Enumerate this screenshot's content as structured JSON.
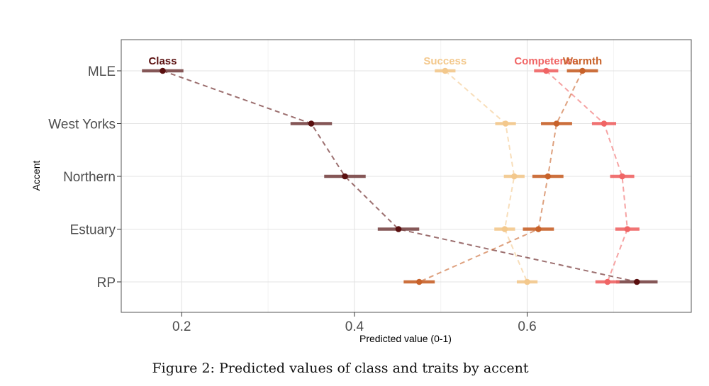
{
  "caption": "Figure 2: Predicted values of class and traits by accent",
  "chart_data": {
    "type": "scatter",
    "xlabel": "Predicted value (0-1)",
    "ylabel": "Accent",
    "xlim": [
      0.13,
      0.79
    ],
    "xticks": [
      0.2,
      0.4,
      0.6
    ],
    "xtick_labels": [
      "0.2",
      "0.4",
      "0.6"
    ],
    "categories": [
      "MLE",
      "West Yorks",
      "Northern",
      "Estuary",
      "RP"
    ],
    "grid": true,
    "legend": "direct labels above series at MLE row",
    "series": [
      {
        "name": "Class",
        "color": "#5a0f0f",
        "bar_color": "#7a4646",
        "values": [
          0.178,
          0.35,
          0.389,
          0.451,
          0.727
        ],
        "lower": [
          0.154,
          0.326,
          0.365,
          0.427,
          0.703
        ],
        "upper": [
          0.202,
          0.374,
          0.413,
          0.475,
          0.751
        ]
      },
      {
        "name": "Success",
        "color": "#f3c88c",
        "bar_color": "#f3c88c",
        "values": [
          0.505,
          0.575,
          0.585,
          0.574,
          0.6
        ],
        "lower": [
          0.493,
          0.563,
          0.573,
          0.562,
          0.588
        ],
        "upper": [
          0.517,
          0.587,
          0.597,
          0.586,
          0.612
        ]
      },
      {
        "name": "Competence",
        "color": "#f06565",
        "bar_color": "#f06565",
        "values": [
          0.622,
          0.689,
          0.71,
          0.716,
          0.693
        ],
        "lower": [
          0.608,
          0.675,
          0.696,
          0.702,
          0.679
        ],
        "upper": [
          0.636,
          0.703,
          0.724,
          0.73,
          0.707
        ]
      },
      {
        "name": "Warmth",
        "color": "#c8622a",
        "bar_color": "#c8622a",
        "values": [
          0.664,
          0.634,
          0.624,
          0.613,
          0.475
        ],
        "lower": [
          0.646,
          0.616,
          0.606,
          0.595,
          0.457
        ],
        "upper": [
          0.682,
          0.652,
          0.642,
          0.631,
          0.493
        ]
      }
    ]
  }
}
